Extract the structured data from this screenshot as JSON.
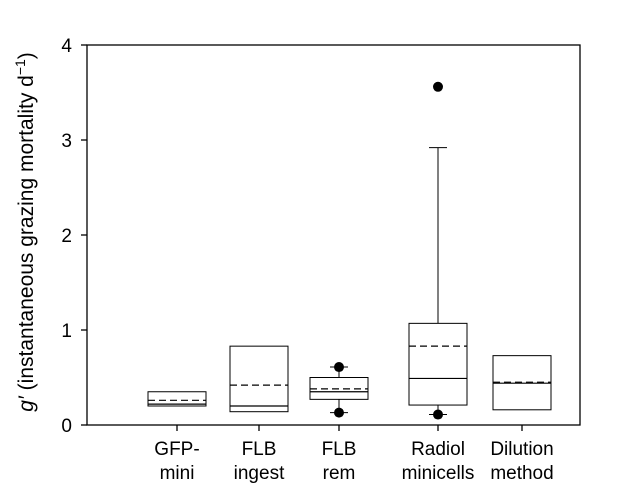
{
  "chart_data": {
    "type": "box",
    "ylabel_symbol": "g′",
    "ylabel_text": " (instantaneous grazing mortality d",
    "ylabel_sup": "−1",
    "ylabel_close": ")",
    "ylim": [
      0,
      4
    ],
    "yticks": [
      0,
      1,
      2,
      3,
      4
    ],
    "grid": false,
    "categories": [
      [
        "GFP-",
        "mini"
      ],
      [
        "FLB",
        "ingest"
      ],
      [
        "FLB",
        "rem"
      ],
      [
        "Radiol",
        "minicells"
      ],
      [
        "Dilution",
        "method"
      ]
    ],
    "boxes": [
      {
        "q1": 0.2,
        "median": 0.22,
        "mean": 0.26,
        "q3": 0.35,
        "whisker_low": null,
        "whisker_high": null,
        "outliers": []
      },
      {
        "q1": 0.14,
        "median": 0.2,
        "mean": 0.42,
        "q3": 0.83,
        "whisker_low": null,
        "whisker_high": null,
        "outliers": []
      },
      {
        "q1": 0.27,
        "median": 0.35,
        "mean": 0.38,
        "q3": 0.5,
        "whisker_low": 0.13,
        "whisker_high": 0.61,
        "outliers": [
          0.13,
          0.61
        ]
      },
      {
        "q1": 0.21,
        "median": 0.49,
        "mean": 0.83,
        "q3": 1.07,
        "whisker_low": 0.11,
        "whisker_high": 2.92,
        "outliers": [
          0.11,
          3.56
        ]
      },
      {
        "q1": 0.16,
        "median": 0.44,
        "mean": 0.45,
        "q3": 0.73,
        "whisker_low": null,
        "whisker_high": null,
        "outliers": []
      }
    ]
  }
}
